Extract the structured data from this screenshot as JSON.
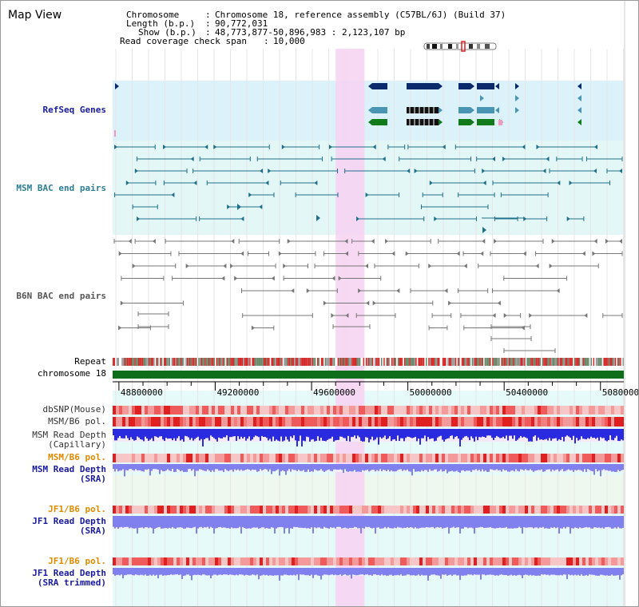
{
  "title": "Map View",
  "info": {
    "chromosome_key": "Chromosome",
    "chromosome_val": "Chromosome 18, reference assembly (C57BL/6J) (Build 37)",
    "length_key": "Length (b.p.)",
    "length_val": "90,772,031",
    "show_key": "Show (b.p.)",
    "show_val": "48,773,877-50,896,983 : 2,123,107 bp",
    "coverage_key": "Read coverage check span",
    "coverage_val": "10,000"
  },
  "tracks": {
    "refseq": "RefSeq Genes",
    "msm_bac": "MSM BAC end pairs",
    "b6n_bac": "B6N BAC end pairs",
    "repeat": "Repeat",
    "chromosome": "chromosome 18",
    "dbsnp": "dbSNP(Mouse)",
    "msm_pol": "MSM/B6 pol.",
    "msm_depth_cap_1": "MSM Read Depth",
    "msm_depth_cap_2": "(Capillary)",
    "msm_pol2": "MSM/B6 pol.",
    "msm_depth_sra_1": "MSM Read Depth",
    "msm_depth_sra_2": "(SRA)",
    "jf1_pol": "JF1/B6 pol.",
    "jf1_depth_sra_1": "JF1 Read Depth",
    "jf1_depth_sra_2": "(SRA)",
    "jf1_pol2": "JF1/B6 pol.",
    "jf1_depth_trim_1": "JF1 Read Depth",
    "jf1_depth_trim_2": "(SRA trimmed)"
  },
  "axis": {
    "ticks": [
      "48800000",
      "49200000",
      "49600000",
      "50000000",
      "50400000",
      "50800000"
    ],
    "tick_values": [
      48800000,
      49200000,
      49600000,
      50000000,
      50400000,
      50800000
    ],
    "start": 48773877,
    "end": 50896983
  },
  "highlight": {
    "start": 49700000,
    "end": 49820000
  },
  "colors": {
    "refseq_bg": "#dcf2fa",
    "msm_bg": "#e4f7f7",
    "highlight": "#f7d2f2",
    "gene_navy": "#0b2a6b",
    "gene_teal": "#4a95b4",
    "gene_green": "#117a1a",
    "gene_black": "#111111",
    "msm_line": "#1f6f8b",
    "b6n_line": "#777777",
    "chrom": "#0f6e1a",
    "depth_blue": "#2a2ae0",
    "depth_light": "#8080ee",
    "pol_red": "#e22b2b",
    "label_navy": "#1a1a9c",
    "label_teal": "#2b7e94",
    "label_gray": "#555555",
    "label_orange": "#e08a00"
  },
  "icons": {
    "chromosome_ideogram": "ideogram-icon"
  }
}
